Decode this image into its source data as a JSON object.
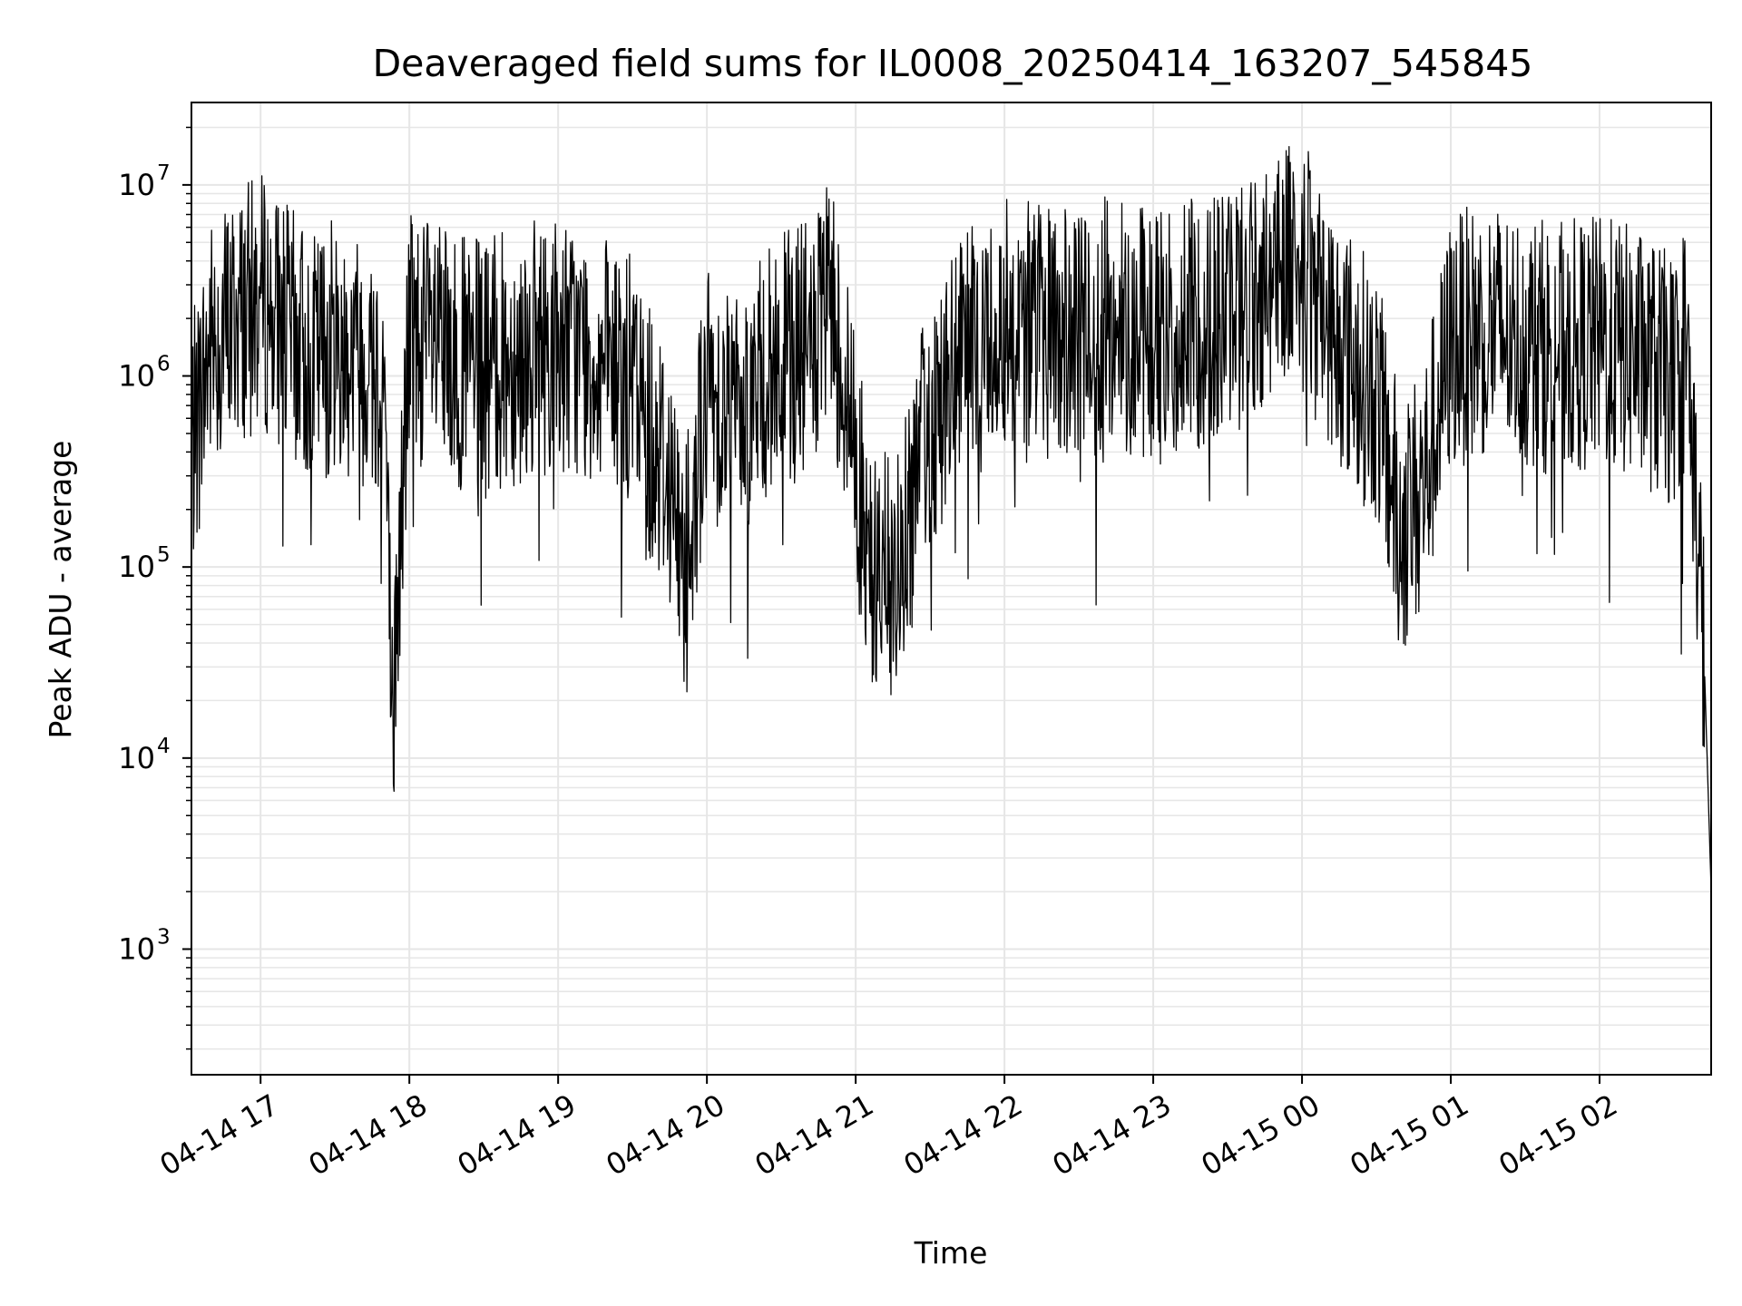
{
  "chart_data": {
    "type": "line",
    "title": "Deaveraged field sums for IL0008_20250414_163207_545845",
    "xlabel": "Time",
    "ylabel": "Peak ADU - average",
    "y_scale": "log",
    "ylim": [
      220,
      27000000
    ],
    "xlim": [
      "2025-04-14T16:32:07",
      "2025-04-15T02:45:00"
    ],
    "grid": true,
    "line_color": "#000000",
    "grid_color": "#e6e6e6",
    "x_ticks": [
      {
        "t": "2025-04-14T17:00",
        "label": "04-14 17"
      },
      {
        "t": "2025-04-14T18:00",
        "label": "04-14 18"
      },
      {
        "t": "2025-04-14T19:00",
        "label": "04-14 19"
      },
      {
        "t": "2025-04-14T20:00",
        "label": "04-14 20"
      },
      {
        "t": "2025-04-14T21:00",
        "label": "04-14 21"
      },
      {
        "t": "2025-04-14T22:00",
        "label": "04-14 22"
      },
      {
        "t": "2025-04-14T23:00",
        "label": "04-14 23"
      },
      {
        "t": "2025-04-15T00:00",
        "label": "04-15 00"
      },
      {
        "t": "2025-04-15T01:00",
        "label": "04-15 01"
      },
      {
        "t": "2025-04-15T02:00",
        "label": "04-15 02"
      }
    ],
    "y_ticks": [
      {
        "value": 1000,
        "base": "10",
        "exp": "3"
      },
      {
        "value": 10000,
        "base": "10",
        "exp": "4"
      },
      {
        "value": 100000,
        "base": "10",
        "exp": "5"
      },
      {
        "value": 1000000,
        "base": "10",
        "exp": "6"
      },
      {
        "value": 10000000,
        "base": "10",
        "exp": "7"
      }
    ],
    "series": [
      {
        "x": [
          "2025-04-14T16:32",
          "2025-04-14T16:40",
          "2025-04-14T16:50",
          "2025-04-14T17:00",
          "2025-04-14T17:10",
          "2025-04-14T17:20",
          "2025-04-14T17:30",
          "2025-04-14T17:40",
          "2025-04-14T17:50",
          "2025-04-14T17:53",
          "2025-04-14T18:00",
          "2025-04-14T18:15",
          "2025-04-14T18:30",
          "2025-04-14T18:45",
          "2025-04-14T19:00",
          "2025-04-14T19:15",
          "2025-04-14T19:30",
          "2025-04-14T19:45",
          "2025-04-14T19:50",
          "2025-04-14T20:00",
          "2025-04-14T20:15",
          "2025-04-14T20:30",
          "2025-04-14T20:45",
          "2025-04-14T20:50",
          "2025-04-14T21:00",
          "2025-04-14T21:05",
          "2025-04-14T21:15",
          "2025-04-14T21:30",
          "2025-04-14T21:45",
          "2025-04-14T22:00",
          "2025-04-14T22:15",
          "2025-04-14T22:30",
          "2025-04-14T22:45",
          "2025-04-14T23:00",
          "2025-04-14T23:15",
          "2025-04-14T23:30",
          "2025-04-14T23:45",
          "2025-04-14T23:55",
          "2025-04-15T00:15",
          "2025-04-15T00:30",
          "2025-04-15T00:40",
          "2025-04-15T00:50",
          "2025-04-15T01:00",
          "2025-04-15T01:15",
          "2025-04-15T01:30",
          "2025-04-15T01:45",
          "2025-04-15T02:00",
          "2025-04-15T02:15",
          "2025-04-15T02:30",
          "2025-04-15T02:35",
          "2025-04-15T02:42",
          "2025-04-15T02:45"
        ],
        "y": [
          400000,
          1500000,
          2000000,
          2500000,
          1800000,
          1200000,
          1500000,
          1300000,
          1000000,
          12000,
          1800000,
          1200000,
          1100000,
          1300000,
          1500000,
          1200000,
          900000,
          300000,
          100000,
          800000,
          700000,
          1200000,
          1500000,
          2500000,
          400000,
          100000,
          80000,
          600000,
          1200000,
          2000000,
          1800000,
          1500000,
          2000000,
          1600000,
          1800000,
          2200000,
          3000000,
          5000000,
          1500000,
          800000,
          150000,
          300000,
          1500000,
          1800000,
          1500000,
          1400000,
          1500000,
          1300000,
          900000,
          1500000,
          40000,
          2000
        ]
      }
    ]
  }
}
